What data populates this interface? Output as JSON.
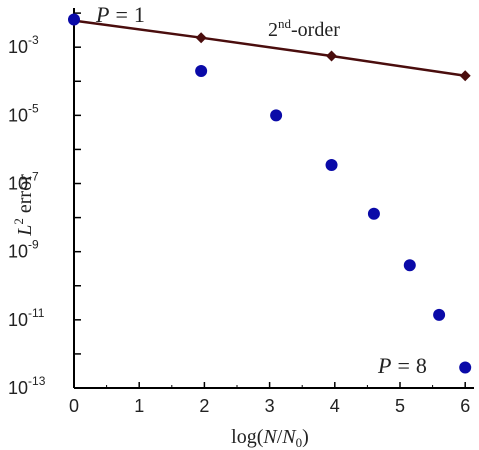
{
  "chart_data": {
    "type": "scatter",
    "xlabel": "log(N/N0)",
    "ylabel": "L2 error",
    "xlim": [
      0,
      6.15
    ],
    "ylim_log10": [
      -13,
      -1.85
    ],
    "y_scale": "log",
    "grid": false,
    "x_ticks": [
      0,
      1,
      2,
      3,
      4,
      5,
      6
    ],
    "x_tick_labels": [
      "0",
      "1",
      "2",
      "3",
      "4",
      "5",
      "6"
    ],
    "y_ticks_exp": [
      -3,
      -5,
      -7,
      -9,
      -11,
      -13
    ],
    "y_tick_base": "10",
    "series": [
      {
        "name": "2nd-order",
        "style": "line-diamond",
        "color": "#4a0d0d",
        "x": [
          0.0,
          1.95,
          3.95,
          6.0
        ],
        "y": [
          0.006,
          0.0019,
          0.00055,
          0.000145
        ]
      },
      {
        "name": "",
        "style": "dots",
        "color": "#0a0aa8",
        "x": [
          0.0,
          1.95,
          3.1,
          3.95,
          4.6,
          5.15,
          5.6,
          6.0
        ],
        "y": [
          0.0065,
          0.0002,
          1e-05,
          3.5e-07,
          1.3e-08,
          4e-10,
          1.4e-11,
          4e-13
        ]
      }
    ],
    "annotations": {
      "p1_lhs": "P",
      "p1_rhs": "1",
      "p8_lhs": "P",
      "p8_rhs": "8",
      "equals": "=",
      "order_num": "2",
      "order_sup": "nd",
      "order_rest": "-order"
    },
    "xlabel_parts": {
      "a": "log(",
      "b": "N",
      "c": "/",
      "d": "N",
      "e": "0",
      "f": ")"
    },
    "ylabel_parts": {
      "a": "L",
      "b": "2",
      "c": " error"
    }
  }
}
